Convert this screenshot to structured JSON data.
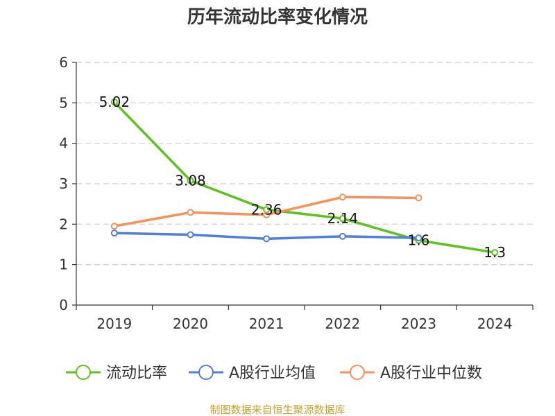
{
  "chart_data": {
    "type": "line",
    "title": "历年流动比率变化情况",
    "categories": [
      "2019",
      "2020",
      "2021",
      "2022",
      "2023",
      "2024"
    ],
    "ylim": [
      0,
      6
    ],
    "yticks": [
      0,
      1,
      2,
      3,
      4,
      5,
      6
    ],
    "ytick_labels": [
      "0",
      "1",
      "2",
      "3",
      "4",
      "5",
      "6"
    ],
    "grid": true,
    "legend_position": "bottom",
    "series": [
      {
        "name": "流动比率",
        "color": "#5dc21e",
        "values": [
          5.02,
          3.08,
          2.36,
          2.14,
          1.6,
          1.3
        ],
        "data_labels": [
          "5.02",
          "3.08",
          "2.36",
          "2.14",
          "1.6",
          "1.3"
        ]
      },
      {
        "name": "A股行业均值",
        "color": "#4f7fd8",
        "values": [
          1.78,
          1.74,
          1.64,
          1.7,
          1.66,
          null
        ]
      },
      {
        "name": "A股行业中位数",
        "color": "#f59159",
        "values": [
          1.95,
          2.29,
          2.23,
          2.67,
          2.65,
          null
        ]
      }
    ]
  },
  "source": "制图数据来自恒生聚源数据库"
}
